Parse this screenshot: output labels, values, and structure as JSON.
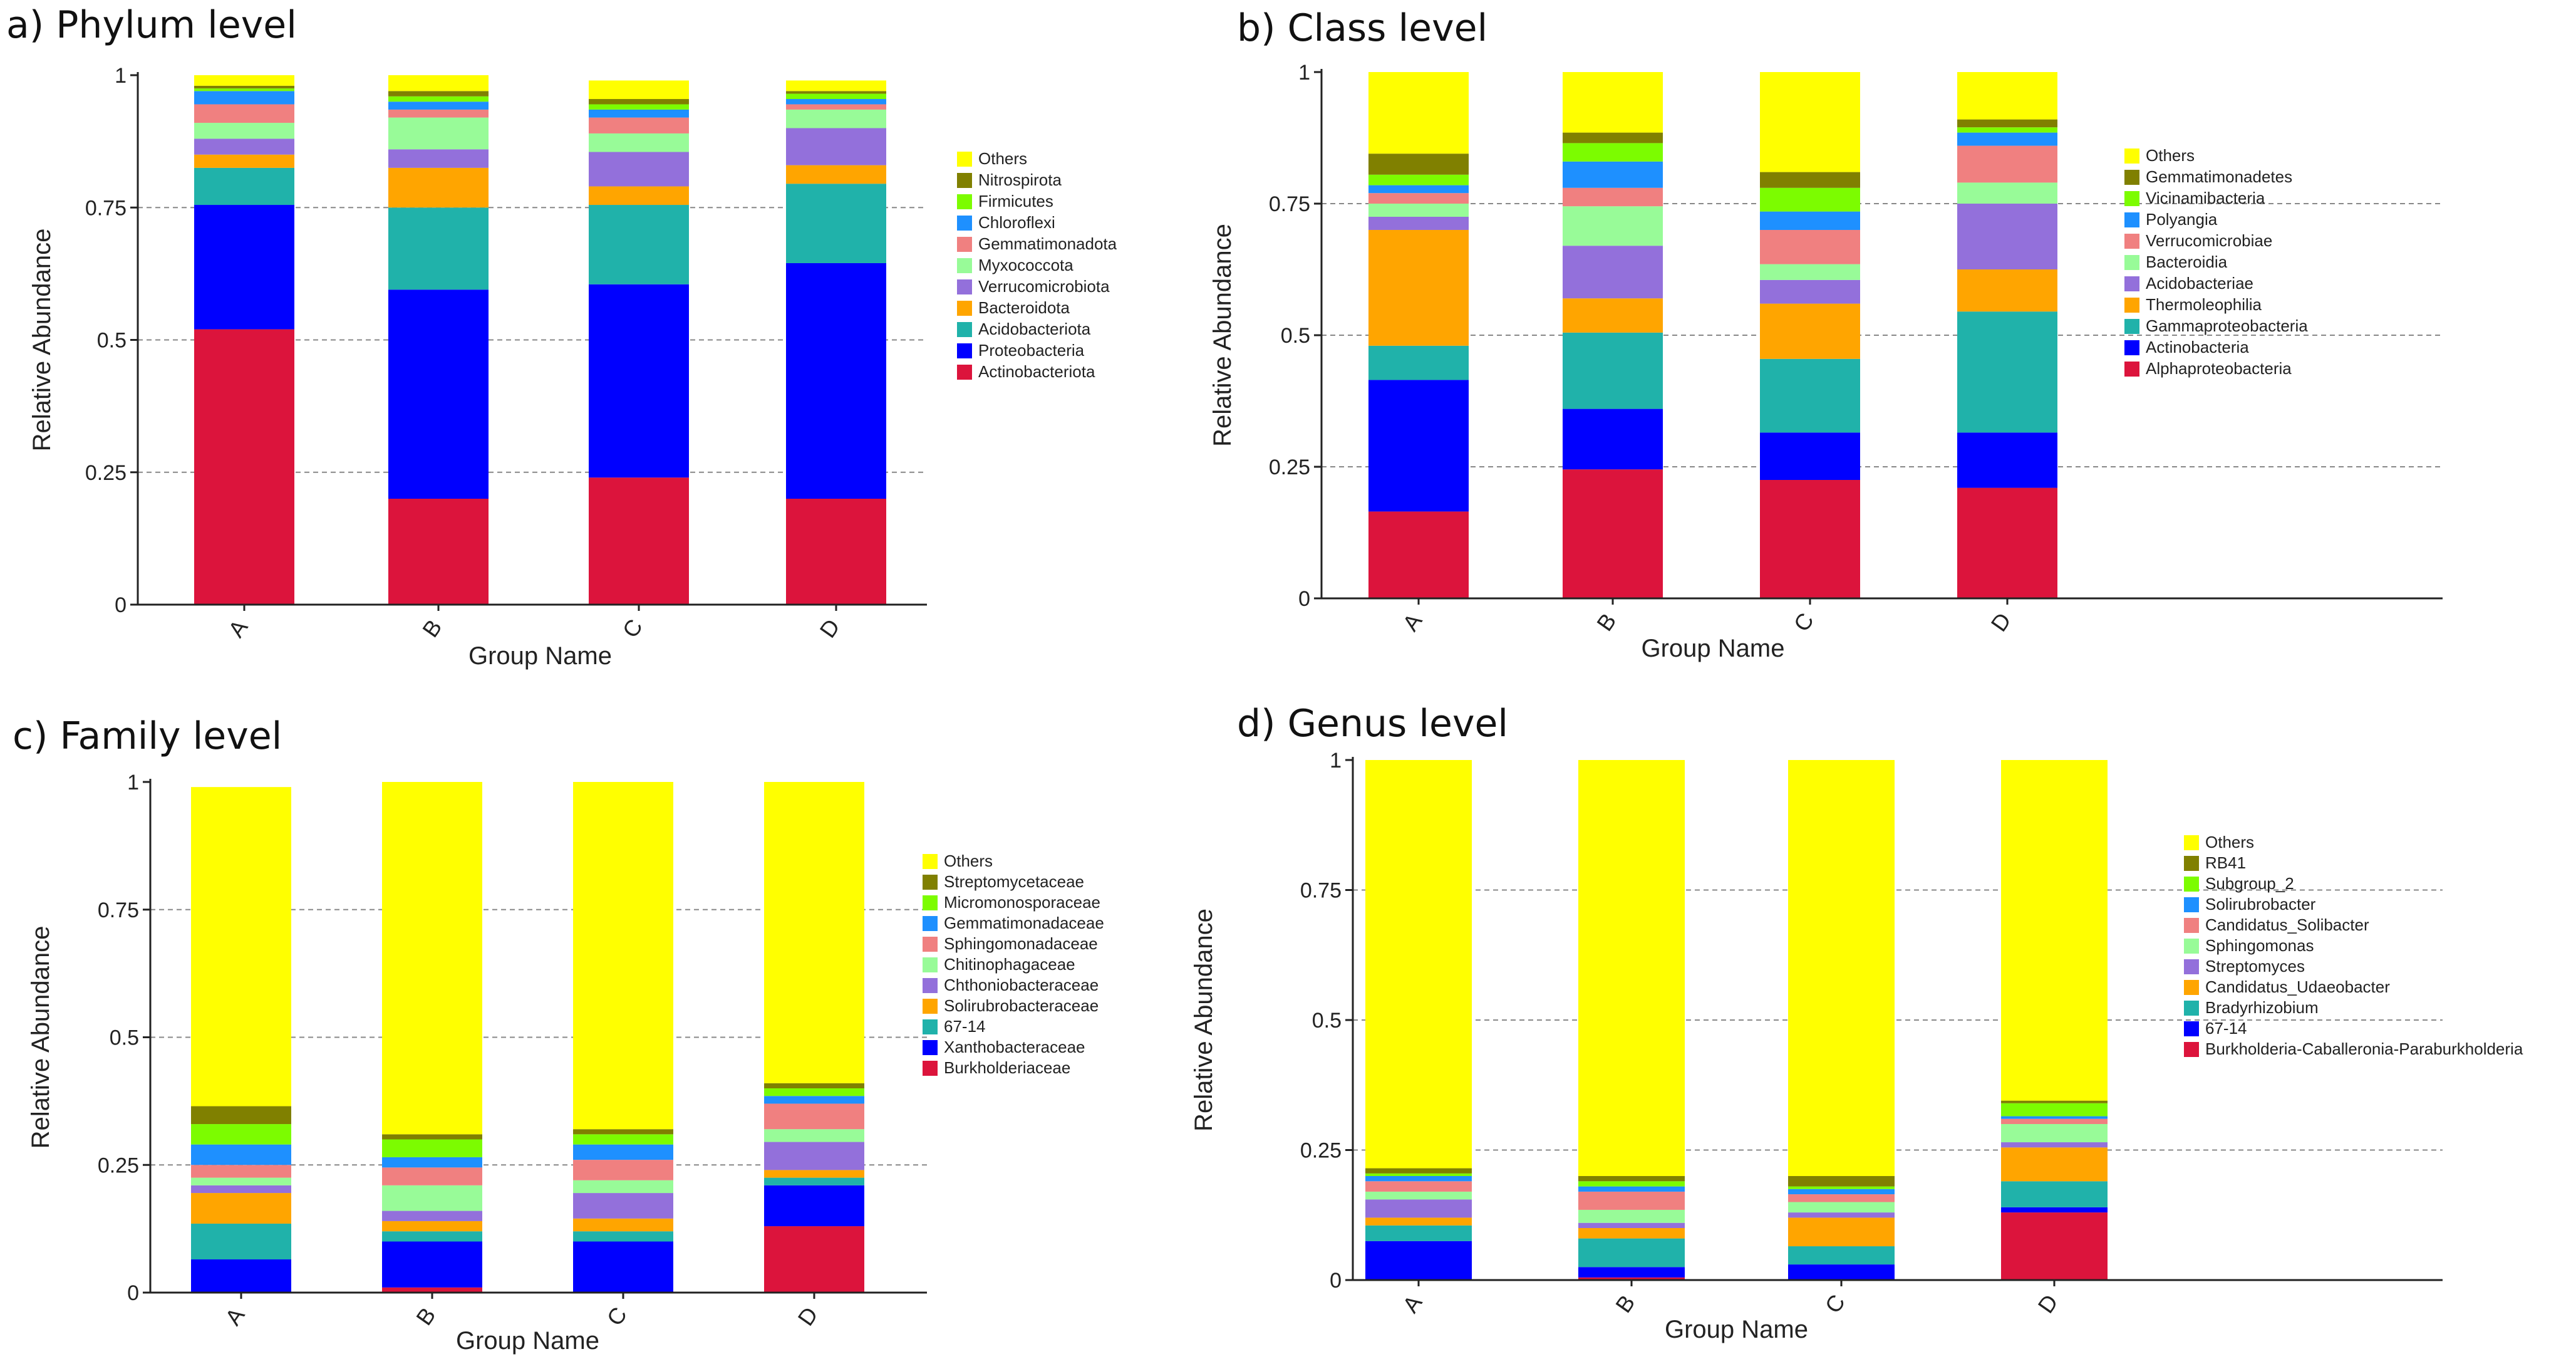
{
  "palette": [
    "#dc143c",
    "#0000ff",
    "#20b2aa",
    "#ffa500",
    "#9370db",
    "#98fb98",
    "#f08080",
    "#1e90ff",
    "#7cfc00",
    "#808000",
    "#ffff00"
  ],
  "chart_data": [
    {
      "type": "bar",
      "stacked": true,
      "title": "a) Phylum level",
      "xlabel": "Group Name",
      "ylabel": "Relative Abundance",
      "ylim": [
        0,
        1
      ],
      "yticks": [
        "0",
        "0.25",
        "0.5",
        "0.75",
        "1"
      ],
      "categories": [
        "A",
        "B",
        "C",
        "D"
      ],
      "series": [
        {
          "name": "Actinobacteriota",
          "values": [
            0.52,
            0.2,
            0.24,
            0.2
          ]
        },
        {
          "name": "Proteobacteria",
          "values": [
            0.235,
            0.395,
            0.365,
            0.445
          ]
        },
        {
          "name": "Acidobacteriota",
          "values": [
            0.07,
            0.155,
            0.15,
            0.15
          ]
        },
        {
          "name": "Bacteroidota",
          "values": [
            0.025,
            0.075,
            0.035,
            0.035
          ]
        },
        {
          "name": "Verrucomicrobiota",
          "values": [
            0.03,
            0.035,
            0.065,
            0.07
          ]
        },
        {
          "name": "Myxococcota",
          "values": [
            0.03,
            0.06,
            0.035,
            0.035
          ]
        },
        {
          "name": "Gemmatimonadota",
          "values": [
            0.035,
            0.015,
            0.03,
            0.01
          ]
        },
        {
          "name": "Chloroflexi",
          "values": [
            0.025,
            0.015,
            0.015,
            0.01
          ]
        },
        {
          "name": "Firmicutes",
          "values": [
            0.005,
            0.01,
            0.01,
            0.01
          ]
        },
        {
          "name": "Nitrospirota",
          "values": [
            0.005,
            0.01,
            0.01,
            0.005
          ]
        },
        {
          "name": "Others",
          "values": [
            0.02,
            0.03,
            0.035,
            0.02
          ]
        }
      ]
    },
    {
      "type": "bar",
      "stacked": true,
      "title": "b) Class level",
      "xlabel": "Group Name",
      "ylabel": "Relative Abundance",
      "ylim": [
        0,
        1
      ],
      "yticks": [
        "0",
        "0.25",
        "0.5",
        "0.75",
        "1"
      ],
      "categories": [
        "A",
        "B",
        "C",
        "D"
      ],
      "series": [
        {
          "name": "Alphaproteobacteria",
          "values": [
            0.165,
            0.245,
            0.225,
            0.21
          ]
        },
        {
          "name": "Actinobacteria",
          "values": [
            0.25,
            0.115,
            0.09,
            0.105
          ]
        },
        {
          "name": "Gammaproteobacteria",
          "values": [
            0.065,
            0.145,
            0.14,
            0.23
          ]
        },
        {
          "name": "Thermoleophilia",
          "values": [
            0.22,
            0.065,
            0.105,
            0.08
          ]
        },
        {
          "name": "Acidobacteriae",
          "values": [
            0.025,
            0.1,
            0.045,
            0.125
          ]
        },
        {
          "name": "Bacteroidia",
          "values": [
            0.025,
            0.075,
            0.03,
            0.04
          ]
        },
        {
          "name": "Verrucomicrobiae",
          "values": [
            0.02,
            0.035,
            0.065,
            0.07
          ]
        },
        {
          "name": "Polyangia",
          "values": [
            0.015,
            0.05,
            0.035,
            0.025
          ]
        },
        {
          "name": "Vicinamibacteria",
          "values": [
            0.02,
            0.035,
            0.045,
            0.01
          ]
        },
        {
          "name": "Gemmatimonadetes",
          "values": [
            0.04,
            0.02,
            0.03,
            0.015
          ]
        },
        {
          "name": "Others",
          "values": [
            0.155,
            0.115,
            0.19,
            0.09
          ]
        }
      ]
    },
    {
      "type": "bar",
      "stacked": true,
      "title": "c) Family level",
      "xlabel": "Group Name",
      "ylabel": "Relative Abundance",
      "ylim": [
        0,
        1
      ],
      "yticks": [
        "0",
        "0.25",
        "0.5",
        "0.75",
        "1"
      ],
      "categories": [
        "A",
        "B",
        "C",
        "D"
      ],
      "series": [
        {
          "name": "Burkholderiaceae",
          "values": [
            0.0,
            0.01,
            0.0,
            0.13
          ]
        },
        {
          "name": "Xanthobacteraceae",
          "values": [
            0.065,
            0.09,
            0.1,
            0.08
          ]
        },
        {
          "name": "67-14",
          "values": [
            0.07,
            0.02,
            0.02,
            0.015
          ]
        },
        {
          "name": "Solirubrobacteraceae",
          "values": [
            0.06,
            0.02,
            0.025,
            0.015
          ]
        },
        {
          "name": "Chthoniobacteraceae",
          "values": [
            0.015,
            0.02,
            0.05,
            0.055
          ]
        },
        {
          "name": "Chitinophagaceae",
          "values": [
            0.015,
            0.05,
            0.025,
            0.025
          ]
        },
        {
          "name": "Sphingomonadaceae",
          "values": [
            0.025,
            0.035,
            0.04,
            0.05
          ]
        },
        {
          "name": "Gemmatimonadaceae",
          "values": [
            0.04,
            0.02,
            0.03,
            0.015
          ]
        },
        {
          "name": "Micromonosporaceae",
          "values": [
            0.04,
            0.035,
            0.02,
            0.015
          ]
        },
        {
          "name": "Streptomycetaceae",
          "values": [
            0.035,
            0.01,
            0.01,
            0.01
          ]
        },
        {
          "name": "Others",
          "values": [
            0.625,
            0.69,
            0.68,
            0.59
          ]
        }
      ]
    },
    {
      "type": "bar",
      "stacked": true,
      "title": "d) Genus level",
      "xlabel": "Group Name",
      "ylabel": "Relative Abundance",
      "ylim": [
        0,
        1
      ],
      "yticks": [
        "0",
        "0.25",
        "0.5",
        "0.75",
        "1"
      ],
      "categories": [
        "A",
        "B",
        "C",
        "D"
      ],
      "series": [
        {
          "name": "Burkholderia-Caballeronia-Paraburkholderia",
          "values": [
            0.0,
            0.005,
            0.0,
            0.13
          ]
        },
        {
          "name": "67-14",
          "values": [
            0.075,
            0.02,
            0.03,
            0.01
          ]
        },
        {
          "name": "Bradyrhizobium",
          "values": [
            0.03,
            0.055,
            0.035,
            0.05
          ]
        },
        {
          "name": "Candidatus_Udaeobacter",
          "values": [
            0.015,
            0.02,
            0.055,
            0.065
          ]
        },
        {
          "name": "Streptomyces",
          "values": [
            0.035,
            0.01,
            0.01,
            0.01
          ]
        },
        {
          "name": "Sphingomonas",
          "values": [
            0.015,
            0.025,
            0.02,
            0.035
          ]
        },
        {
          "name": "Candidatus_Solibacter",
          "values": [
            0.02,
            0.035,
            0.015,
            0.01
          ]
        },
        {
          "name": "Solirubrobacter",
          "values": [
            0.01,
            0.01,
            0.01,
            0.005
          ]
        },
        {
          "name": "Subgroup_2",
          "values": [
            0.005,
            0.01,
            0.005,
            0.025
          ]
        },
        {
          "name": "RB41",
          "values": [
            0.01,
            0.01,
            0.02,
            0.005
          ]
        },
        {
          "name": "Others",
          "values": [
            0.785,
            0.8,
            0.8,
            0.655
          ]
        }
      ]
    }
  ]
}
